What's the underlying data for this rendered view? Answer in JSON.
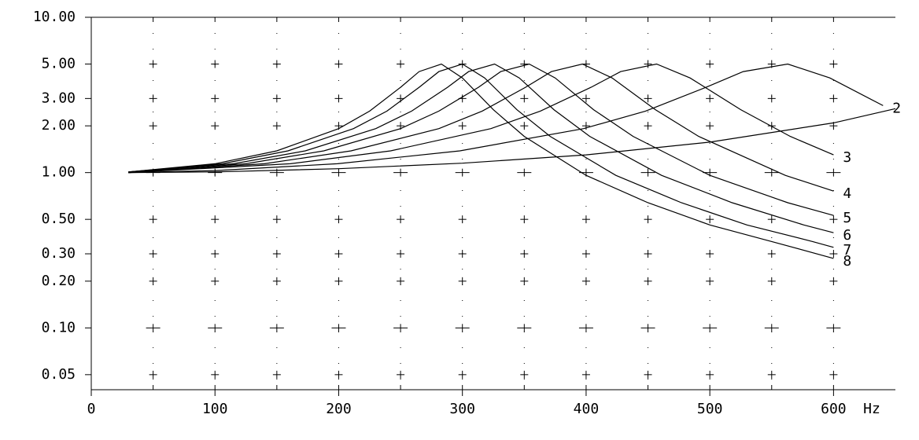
{
  "chart_data": {
    "type": "line",
    "log_y": true,
    "color": "#000000",
    "x_label": "Hz",
    "xlim": [
      0,
      650
    ],
    "ylim": [
      0.04,
      10
    ],
    "xticks": [
      0,
      100,
      200,
      300,
      400,
      500,
      600
    ],
    "xgrid": [
      50,
      100,
      150,
      200,
      250,
      300,
      350,
      400,
      450,
      500,
      550,
      600
    ],
    "yticks": [
      {
        "value": 10,
        "label": "10.00"
      },
      {
        "value": 5,
        "label": "5.00"
      },
      {
        "value": 3,
        "label": "3.00"
      },
      {
        "value": 2,
        "label": "2.00"
      },
      {
        "value": 1,
        "label": "1.00"
      },
      {
        "value": 0.5,
        "label": "0.50"
      },
      {
        "value": 0.3,
        "label": "0.30"
      },
      {
        "value": 0.2,
        "label": "0.20"
      },
      {
        "value": 0.1,
        "label": "0.10"
      },
      {
        "value": 0.05,
        "label": "0.05"
      }
    ],
    "series": [
      {
        "name": "2",
        "x": [
          30,
          100,
          199,
          298,
          398,
          448,
          497,
          527,
          563,
          597,
          640
        ],
        "values": [
          1.0,
          1.03,
          1.14,
          1.38,
          1.92,
          2.49,
          3.54,
          4.47,
          5.0,
          4.07,
          2.7
        ]
      },
      {
        "name": "3",
        "x": [
          30,
          161,
          242,
          323,
          363,
          404,
          428,
          457,
          484,
          525,
          565,
          600
        ],
        "values": [
          1.0,
          1.14,
          1.38,
          1.92,
          2.49,
          3.54,
          4.47,
          5.0,
          4.07,
          2.54,
          1.71,
          1.3
        ]
      },
      {
        "name": "4",
        "x": [
          30,
          140,
          210,
          281,
          316,
          351,
          372,
          397,
          421,
          456,
          491,
          561,
          600
        ],
        "values": [
          1.0,
          1.14,
          1.38,
          1.92,
          2.49,
          3.54,
          4.47,
          5.0,
          4.07,
          2.54,
          1.71,
          0.96,
          0.76
        ]
      },
      {
        "name": "5",
        "x": [
          30,
          125,
          188,
          250,
          281,
          313,
          331,
          354,
          375,
          406,
          438,
          500,
          563,
          600
        ],
        "values": [
          1.0,
          1.14,
          1.38,
          1.92,
          2.49,
          3.54,
          4.47,
          5.0,
          4.07,
          2.54,
          1.71,
          0.96,
          0.64,
          0.53
        ]
      },
      {
        "name": "6",
        "x": [
          30,
          115,
          173,
          230,
          259,
          288,
          305,
          326,
          346,
          374,
          403,
          461,
          518,
          576,
          600
        ],
        "values": [
          1.01,
          1.14,
          1.38,
          1.92,
          2.49,
          3.54,
          4.47,
          5.0,
          4.07,
          2.54,
          1.71,
          0.96,
          0.64,
          0.46,
          0.41
        ]
      },
      {
        "name": "7",
        "x": [
          30,
          106,
          159,
          212,
          239,
          265,
          281,
          300,
          318,
          344,
          371,
          424,
          477,
          530,
          583,
          600
        ],
        "values": [
          1.01,
          1.14,
          1.38,
          1.92,
          2.49,
          3.54,
          4.47,
          5.0,
          4.07,
          2.54,
          1.71,
          0.96,
          0.64,
          0.46,
          0.36,
          0.33
        ]
      },
      {
        "name": "8",
        "x": [
          30,
          100,
          150,
          200,
          225,
          250,
          265,
          283,
          300,
          325,
          350,
          400,
          450,
          500,
          550,
          600
        ],
        "values": [
          1.01,
          1.14,
          1.38,
          1.92,
          2.49,
          3.54,
          4.47,
          5.0,
          4.07,
          2.54,
          1.71,
          0.96,
          0.64,
          0.46,
          0.36,
          0.28
        ]
      },
      {
        "x": [
          30,
          100,
          200,
          300,
          400,
          500,
          600,
          650
        ],
        "values": [
          1.0,
          1.01,
          1.06,
          1.15,
          1.3,
          1.57,
          2.09,
          2.58
        ]
      }
    ]
  }
}
